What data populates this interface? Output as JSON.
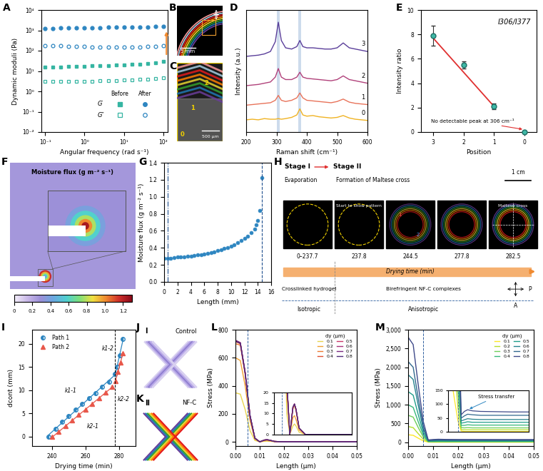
{
  "chart_data": [
    {
      "panel_label": "A",
      "type": "scatter",
      "log": true,
      "x": [
        0.1,
        0.158,
        0.251,
        0.398,
        0.631,
        1,
        1.58,
        2.51,
        3.98,
        6.31,
        10,
        15.8,
        25.1,
        39.8,
        63.1,
        100
      ],
      "xlim": [
        0.08,
        130
      ],
      "xticks": [
        {
          "value": 0.1,
          "label": "10⁻¹"
        },
        {
          "value": 1,
          "label": "10⁰"
        },
        {
          "value": 10,
          "label": "10¹"
        },
        {
          "value": 100,
          "label": "10²"
        }
      ],
      "ylim": [
        0.01,
        10000
      ],
      "yticks": [
        {
          "value": 0.01,
          "label": "10⁻²"
        },
        {
          "value": 0.1,
          "label": "10⁻¹"
        },
        {
          "value": 1,
          "label": "10⁰"
        },
        {
          "value": 10,
          "label": "10¹"
        },
        {
          "value": 100,
          "label": "10²"
        },
        {
          "value": 1000,
          "label": "10³"
        },
        {
          "value": 10000,
          "label": "10⁴"
        }
      ],
      "x_label": "Angular frequency (rad s⁻¹)",
      "y_label": "Dynamic moduli (Pa)",
      "series": [
        {
          "name": "G′",
          "condition": "Before",
          "color": "#35b5a2",
          "marker": "square",
          "values": [
            15,
            15.5,
            16,
            16.5,
            17,
            17.5,
            18,
            18.5,
            19,
            19.5,
            20,
            21,
            22,
            24,
            26,
            30
          ]
        },
        {
          "name": "G″",
          "condition": "Before",
          "color": "#35b5a2",
          "marker": "square-open",
          "values": [
            3,
            3,
            3,
            3.1,
            3.1,
            3.2,
            3.2,
            3.3,
            3.3,
            3.4,
            3.5,
            3.6,
            3.8,
            4,
            4.3,
            4.6
          ]
        },
        {
          "name": "G′",
          "condition": "After",
          "color": "#2e86c1",
          "marker": "circle",
          "values": [
            1250,
            1270,
            1290,
            1300,
            1320,
            1340,
            1350,
            1370,
            1390,
            1400,
            1420,
            1440,
            1460,
            1480,
            1500,
            1520
          ]
        },
        {
          "name": "G″",
          "condition": "After",
          "color": "#2e86c1",
          "marker": "circle-open",
          "values": [
            180,
            175,
            170,
            165,
            160,
            158,
            155,
            152,
            150,
            150,
            150,
            152,
            155,
            160,
            168,
            180
          ]
        }
      ]
    },
    {
      "panel_label": "D",
      "type": "line",
      "tick_labels": "x",
      "x": [
        200,
        220,
        240,
        260,
        280,
        296,
        306,
        316,
        330,
        350,
        367,
        377,
        387,
        400,
        420,
        440,
        460,
        480,
        500,
        520,
        540,
        560,
        580,
        600
      ],
      "xlim": [
        200,
        600
      ],
      "xticks": [
        200,
        300,
        400,
        500,
        600
      ],
      "ylim": [
        0,
        10
      ],
      "x_label": "Raman shift (cm⁻¹)",
      "y_label": "Intensity (a.u.)",
      "bands": [
        306,
        377
      ],
      "series": [
        {
          "name": "0",
          "color": "#f0b323",
          "values": [
            1.0,
            1.05,
            1.0,
            1.1,
            1.05,
            1.05,
            1.1,
            1.05,
            1.1,
            1.2,
            1.4,
            1.9,
            1.4,
            1.3,
            1.35,
            1.25,
            1.2,
            1.15,
            1.2,
            1.35,
            1.15,
            1.05,
            1.0,
            0.95
          ]
        },
        {
          "name": "1",
          "color": "#e8735a",
          "values": [
            2.2,
            2.25,
            2.3,
            2.35,
            2.4,
            2.6,
            3.0,
            2.6,
            2.5,
            2.6,
            2.8,
            3.2,
            2.8,
            2.6,
            2.55,
            2.5,
            2.45,
            2.4,
            2.5,
            2.7,
            2.45,
            2.35,
            2.3,
            2.25
          ]
        },
        {
          "name": "2",
          "color": "#b0417a",
          "values": [
            3.8,
            3.85,
            3.9,
            4.0,
            4.1,
            4.5,
            5.2,
            4.5,
            4.3,
            4.3,
            4.5,
            4.9,
            4.5,
            4.4,
            4.35,
            4.3,
            4.25,
            4.2,
            4.3,
            4.6,
            4.3,
            4.2,
            4.1,
            4.0
          ]
        },
        {
          "name": "3",
          "color": "#5a3e9a",
          "values": [
            6.2,
            6.25,
            6.3,
            6.4,
            6.6,
            7.4,
            9.0,
            7.5,
            6.9,
            6.8,
            7.0,
            7.5,
            7.0,
            6.9,
            6.9,
            6.85,
            6.8,
            6.8,
            6.9,
            7.3,
            6.9,
            6.8,
            6.7,
            6.6
          ]
        }
      ]
    },
    {
      "panel_label": "E",
      "type": "scatter",
      "title": "I306/I377",
      "categories": [
        "3",
        "2",
        "1",
        "0"
      ],
      "x_label": "Position",
      "y_label": "Intensity ratio",
      "ylim": [
        0,
        10
      ],
      "yticks": [
        0,
        2,
        4,
        6,
        8,
        10
      ],
      "series": [
        {
          "type": "scatter",
          "color": "#3fb8a6",
          "values": [
            7.9,
            5.5,
            2.1,
            0
          ],
          "errors": [
            0.8,
            0.3,
            0.25,
            0
          ]
        },
        {
          "type": "line",
          "color": "#e03030",
          "values": [
            7.7,
            4.9,
            2.1,
            null
          ]
        }
      ],
      "annotation": "No detectable peak at 306 cm⁻¹"
    },
    {
      "panel_label": "G",
      "type": "scatter",
      "color": "#2e86c1",
      "marker": "circle",
      "x": [
        0,
        0.5,
        1,
        1.5,
        2,
        2.5,
        3,
        3.5,
        4,
        4.5,
        5,
        5.5,
        6,
        6.5,
        7,
        7.5,
        8,
        8.5,
        9,
        9.5,
        10,
        10.5,
        11,
        11.5,
        12,
        12.5,
        13,
        13.5,
        13.8,
        14.0,
        14.3,
        14.6
      ],
      "values": [
        0.28,
        0.28,
        0.28,
        0.285,
        0.29,
        0.29,
        0.295,
        0.3,
        0.305,
        0.31,
        0.315,
        0.32,
        0.33,
        0.335,
        0.345,
        0.355,
        0.365,
        0.375,
        0.39,
        0.405,
        0.42,
        0.44,
        0.46,
        0.485,
        0.51,
        0.54,
        0.58,
        0.62,
        0.67,
        0.72,
        0.84,
        1.22
      ],
      "xlim": [
        0,
        16
      ],
      "xticks": [
        0,
        2,
        4,
        6,
        8,
        10,
        12,
        14,
        16
      ],
      "ylim": [
        0,
        1.4
      ],
      "yticks": [
        {
          "value": 0,
          "label": "0.0"
        },
        0.2,
        0.4,
        0.6,
        0.8,
        {
          "value": 1,
          "label": "1.0"
        },
        1.2,
        1.4
      ],
      "x_label": "Length (mm)",
      "y_label": "Moisture flux (g m⁻² s⁻¹)",
      "vlines": [
        0.5,
        14.6
      ]
    },
    {
      "panel_label": "I",
      "type": "scatter",
      "legend": "upper left",
      "xlim": [
        228,
        290
      ],
      "xticks": [
        240,
        260,
        280
      ],
      "ylim": [
        -2,
        23
      ],
      "yticks": [
        0,
        5,
        10,
        15,
        20
      ],
      "x_label": "Drying time (min)",
      "y_label": "dcont (mm)",
      "vlines": [
        277.8
      ],
      "series": [
        {
          "name": "Path 1",
          "color": "#2e86c1",
          "marker": "circle-half",
          "fit_labels": [
            "k1-1",
            "k1-2"
          ],
          "x": [
            237.8,
            242,
            246,
            250,
            254,
            258,
            262,
            266,
            270,
            274,
            277.8,
            279,
            280.5,
            282.5
          ],
          "values": [
            0,
            1.7,
            3.2,
            4.5,
            5.8,
            7.0,
            8.3,
            9.4,
            10.7,
            11.8,
            13.5,
            15,
            17.5,
            21
          ]
        },
        {
          "name": "Path 2",
          "color": "#e8574a",
          "marker": "triangle",
          "fit_labels": [
            "k2-1",
            "k2-2"
          ],
          "x": [
            240,
            244,
            248,
            252,
            256,
            260,
            264,
            268,
            272,
            276,
            278,
            279.5,
            281,
            282.5
          ],
          "values": [
            0,
            1.0,
            2.3,
            3.5,
            4.7,
            5.8,
            7.0,
            8.3,
            9.5,
            10.7,
            12.0,
            14,
            16,
            18
          ]
        }
      ]
    },
    {
      "panel_label": "L",
      "type": "line",
      "x": [
        0,
        0.002,
        0.004,
        0.006,
        0.008,
        0.01,
        0.012,
        0.013,
        0.014,
        0.016,
        0.02,
        0.03,
        0.04,
        0.05
      ],
      "xlim": [
        0,
        0.05
      ],
      "xticks": [
        {
          "value": 0,
          "label": "0.00"
        },
        0.01,
        0.02,
        0.03,
        0.04,
        0.05
      ],
      "ylim": [
        -30,
        800
      ],
      "yticks": [
        0,
        200,
        400,
        600,
        800
      ],
      "x_label": "Length (μm)",
      "y_label": "Stress (MPa)",
      "legend": "upper right",
      "legend_title": "dy (μm)",
      "vlines": [
        0.005
      ],
      "inset_ylim": [
        0,
        20
      ],
      "inset_yticks": [
        0,
        5,
        10,
        15,
        20
      ],
      "series": [
        {
          "name": "0.1",
          "color": "#e8d44d",
          "values": [
            350,
            340,
            230,
            80,
            10,
            0,
            4,
            5,
            4,
            1,
            0,
            0,
            0,
            0
          ]
        },
        {
          "name": "0.2",
          "color": "#f0a030",
          "values": [
            600,
            580,
            400,
            150,
            20,
            0,
            8,
            9,
            7,
            2,
            0,
            0,
            0,
            0
          ]
        },
        {
          "name": "0.3",
          "color": "#ee7a2e",
          "values": [
            700,
            690,
            480,
            180,
            25,
            0,
            12,
            14,
            11,
            3,
            0,
            0,
            0,
            0
          ]
        },
        {
          "name": "0.4",
          "color": "#e0502f",
          "values": [
            715,
            700,
            490,
            185,
            26,
            0,
            13,
            14.5,
            12,
            3,
            0,
            0,
            0,
            0
          ]
        },
        {
          "name": "0.5",
          "color": "#c8386a",
          "values": [
            720,
            705,
            492,
            186,
            26,
            0,
            13,
            14.5,
            12,
            3,
            0,
            0,
            0,
            0
          ]
        },
        {
          "name": "0.6",
          "color": "#a8307a",
          "values": [
            722,
            707,
            494,
            187,
            26,
            0,
            13,
            14.5,
            12,
            3,
            0,
            0,
            0,
            0
          ]
        },
        {
          "name": "0.7",
          "color": "#7a2a80",
          "values": [
            725,
            708,
            495,
            188,
            26,
            0,
            13,
            14.5,
            12,
            3,
            0,
            0,
            0,
            0
          ]
        },
        {
          "name": "0.8",
          "color": "#502a78",
          "values": [
            718,
            703,
            491,
            186,
            26,
            0,
            13,
            14.5,
            12,
            3,
            0,
            0,
            0,
            0
          ]
        }
      ]
    },
    {
      "panel_label": "M",
      "type": "line",
      "x": [
        0,
        0.002,
        0.004,
        0.006,
        0.008,
        0.01,
        0.012,
        0.015,
        0.02,
        0.03,
        0.04,
        0.05
      ],
      "xlim": [
        0,
        0.05
      ],
      "xticks": [
        {
          "value": 0,
          "label": "0.00"
        },
        0.01,
        0.02,
        0.03,
        0.04,
        0.05
      ],
      "ylim": [
        -100,
        3000
      ],
      "yticks": [
        0,
        500,
        {
          "value": 1000,
          "label": "1,000"
        },
        {
          "value": 1500,
          "label": "1,500"
        },
        {
          "value": 2000,
          "label": "2,000"
        },
        {
          "value": 2500,
          "label": "2,500"
        },
        {
          "value": 3000,
          "label": "3,000"
        }
      ],
      "x_label": "Length (μm)",
      "y_label": "Stress (MPa)",
      "legend": "upper right",
      "legend_title": "dy (μm)",
      "vlines": [
        0.006
      ],
      "inset_ylim": [
        0,
        150
      ],
      "inset_yticks": [
        0,
        50,
        100,
        150
      ],
      "annotation": "Stress transfer",
      "series": [
        {
          "name": "0.1",
          "color": "#fde725",
          "values": [
            200,
            186,
            110,
            40,
            4,
            2,
            2,
            2,
            2,
            2,
            2,
            2
          ]
        },
        {
          "name": "0.2",
          "color": "#b5de2b",
          "values": [
            420,
            390,
            231,
            84,
            9,
            8,
            8,
            8,
            8,
            8,
            8,
            8
          ]
        },
        {
          "name": "0.3",
          "color": "#6ece58",
          "values": [
            720,
            670,
            396,
            144,
            16,
            15,
            16,
            15,
            15,
            15,
            15,
            15
          ]
        },
        {
          "name": "0.4",
          "color": "#35b779",
          "values": [
            1000,
            930,
            550,
            200,
            24,
            24,
            26,
            25,
            25,
            25,
            25,
            25
          ]
        },
        {
          "name": "0.5",
          "color": "#1f9e89",
          "values": [
            1350,
            1255,
            742,
            270,
            32,
            34,
            37,
            35,
            35,
            35,
            35,
            35
          ]
        },
        {
          "name": "0.6",
          "color": "#26828e",
          "values": [
            1800,
            1674,
            990,
            360,
            40,
            44,
            48,
            46,
            45,
            45,
            45,
            45
          ]
        },
        {
          "name": "0.7",
          "color": "#31688e",
          "values": [
            2150,
            2000,
            1182,
            430,
            50,
            58,
            64,
            62,
            60,
            60,
            60,
            60
          ]
        },
        {
          "name": "0.8",
          "color": "#3e4989",
          "values": [
            2800,
            2604,
            1540,
            560,
            62,
            74,
            80,
            76,
            74,
            73,
            72,
            72
          ]
        }
      ]
    }
  ],
  "diagrams": {
    "B": {
      "panel_label": "B",
      "scale_bar": "5 mm"
    },
    "C": {
      "panel_label": "C",
      "scale_bar": "500 µm",
      "marks": [
        "0",
        "1",
        "2"
      ]
    },
    "F": {
      "panel_label": "F",
      "title": "Moisture flux (g m⁻² s⁻¹)",
      "colorbar_range": [
        0,
        1.3
      ],
      "colorbar_ticks": [
        0,
        0.2,
        0.4,
        0.6,
        0.8,
        {
          "value": 1,
          "label": "1.0"
        },
        1.2
      ]
    },
    "H": {
      "panel_label": "H",
      "stage_1": "Stage I",
      "stage_2": "Stage II",
      "stage_1_text": "Evaporation",
      "stage_2_text": "Formation of Maltese cross",
      "scale_bar": "1 cm",
      "frames": [
        {
          "time": "0–237.7"
        },
        {
          "time": "237.8",
          "note": "Start to show pattern"
        },
        {
          "time": "244.5",
          "marks": [
            "1",
            "2"
          ]
        },
        {
          "time": "277.8"
        },
        {
          "time": "282.5",
          "note": "Maltese cross"
        }
      ],
      "axis_label": "Drying time (min)",
      "states": [
        "Crosslinked hydrogel",
        "Birefringent NF-C complexes"
      ],
      "phases": [
        "Isotropic",
        "Anisotropic"
      ],
      "polarizers": [
        "P",
        "A"
      ]
    },
    "J": {
      "panel_label": "J",
      "stage": "I",
      "label": "Control"
    },
    "K": {
      "panel_label": "K",
      "stage": "II",
      "label": "NF-C"
    }
  }
}
